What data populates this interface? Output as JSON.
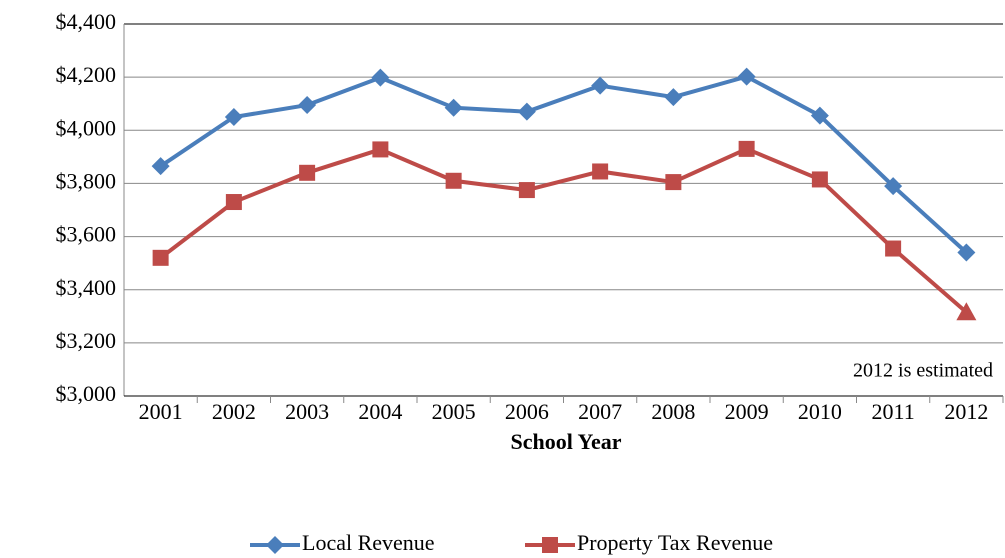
{
  "chart_data": {
    "type": "line",
    "x_label": "School Year",
    "annotation": "2012 is estimated",
    "categories": [
      "2001",
      "2002",
      "2003",
      "2004",
      "2005",
      "2006",
      "2007",
      "2008",
      "2009",
      "2010",
      "2011",
      "2012"
    ],
    "series": [
      {
        "name": "Local Revenue",
        "color": "#4a7ebb",
        "marker": "diamond",
        "values": [
          3865,
          4050,
          4095,
          4198,
          4085,
          4070,
          4168,
          4125,
          4202,
          4055,
          3790,
          3540
        ]
      },
      {
        "name": "Property Tax Revenue",
        "color": "#be4b48",
        "marker": "square",
        "last_marker": "triangle",
        "values": [
          3520,
          3730,
          3840,
          3928,
          3810,
          3775,
          3845,
          3805,
          3930,
          3815,
          3555,
          3315
        ]
      }
    ],
    "ylim": [
      3000,
      4400
    ],
    "yticks": [
      {
        "value": 3000,
        "label": "$3,000"
      },
      {
        "value": 3200,
        "label": "$3,200"
      },
      {
        "value": 3400,
        "label": "$3,400"
      },
      {
        "value": 3600,
        "label": "$3,600"
      },
      {
        "value": 3800,
        "label": "$3,800"
      },
      {
        "value": 4000,
        "label": "$4,000"
      },
      {
        "value": 4200,
        "label": "$4,200"
      },
      {
        "value": 4400,
        "label": "$4,400"
      }
    ],
    "grid": true,
    "legend": "bottom"
  }
}
